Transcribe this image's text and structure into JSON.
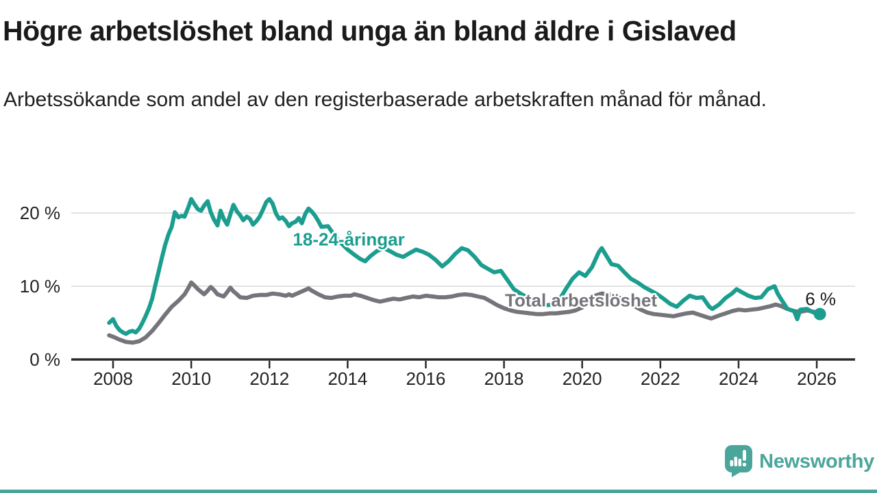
{
  "header": {
    "title": "Högre arbetslöshet bland unga än bland äldre i Gislaved",
    "subtitle": "Arbetssökande som andel av den registerbaserade arbetskraften månad för månad."
  },
  "footer": {
    "brand": "Newsworthy"
  },
  "colors": {
    "youth": "#1b9e8f",
    "total": "#74747a",
    "grid": "#d9d9d9",
    "axis": "#2b2b2b",
    "tick_text": "#222222",
    "annotation_text": "#1a1a1a",
    "brand": "#4aa69b",
    "background": "#ffffff"
  },
  "chart_data": {
    "type": "line",
    "title": "Högre arbetslöshet bland unga än bland äldre i Gislaved",
    "subtitle": "Arbetssökande som andel av den registerbaserade arbetskraften månad för månad.",
    "unit": "%",
    "grid": true,
    "xlim": [
      2007.9,
      2026.3
    ],
    "ylim": [
      0,
      23
    ],
    "x_ticks": [
      2008,
      2010,
      2012,
      2014,
      2016,
      2018,
      2020,
      2022,
      2024,
      2026
    ],
    "x_tick_labels": [
      "2008",
      "2010",
      "2012",
      "2014",
      "2016",
      "2018",
      "2020",
      "2022",
      "2024",
      "2026"
    ],
    "y_ticks": [
      0,
      10,
      20
    ],
    "y_tick_labels": [
      "0 %",
      "10 %",
      "20 %"
    ],
    "series": [
      {
        "name": "Total arbetslöshet",
        "color": "#74747a",
        "label_anchor": [
          2019.97,
          8.1
        ],
        "end_dot": false,
        "points": [
          [
            2007.9,
            3.3
          ],
          [
            2008,
            3.1
          ],
          [
            2008.17,
            2.7
          ],
          [
            2008.33,
            2.4
          ],
          [
            2008.5,
            2.3
          ],
          [
            2008.67,
            2.5
          ],
          [
            2008.83,
            3.0
          ],
          [
            2009,
            3.9
          ],
          [
            2009.17,
            5.0
          ],
          [
            2009.33,
            6.1
          ],
          [
            2009.5,
            7.2
          ],
          [
            2009.67,
            8.0
          ],
          [
            2009.83,
            8.9
          ],
          [
            2009.92,
            9.7
          ],
          [
            2010,
            10.5
          ],
          [
            2010.08,
            10.1
          ],
          [
            2010.17,
            9.6
          ],
          [
            2010.33,
            8.9
          ],
          [
            2010.42,
            9.4
          ],
          [
            2010.5,
            9.9
          ],
          [
            2010.58,
            9.5
          ],
          [
            2010.67,
            8.9
          ],
          [
            2010.83,
            8.6
          ],
          [
            2010.92,
            9.2
          ],
          [
            2011,
            9.8
          ],
          [
            2011.08,
            9.3
          ],
          [
            2011.17,
            8.9
          ],
          [
            2011.25,
            8.5
          ],
          [
            2011.42,
            8.4
          ],
          [
            2011.58,
            8.7
          ],
          [
            2011.75,
            8.8
          ],
          [
            2011.92,
            8.8
          ],
          [
            2012.08,
            9.0
          ],
          [
            2012.25,
            8.9
          ],
          [
            2012.42,
            8.7
          ],
          [
            2012.5,
            8.9
          ],
          [
            2012.58,
            8.7
          ],
          [
            2012.75,
            9.1
          ],
          [
            2012.92,
            9.5
          ],
          [
            2013,
            9.7
          ],
          [
            2013.08,
            9.4
          ],
          [
            2013.25,
            8.9
          ],
          [
            2013.42,
            8.5
          ],
          [
            2013.58,
            8.4
          ],
          [
            2013.75,
            8.6
          ],
          [
            2013.92,
            8.7
          ],
          [
            2014.08,
            8.7
          ],
          [
            2014.17,
            8.9
          ],
          [
            2014.33,
            8.7
          ],
          [
            2014.5,
            8.4
          ],
          [
            2014.67,
            8.1
          ],
          [
            2014.83,
            7.9
          ],
          [
            2015,
            8.1
          ],
          [
            2015.17,
            8.3
          ],
          [
            2015.33,
            8.2
          ],
          [
            2015.5,
            8.4
          ],
          [
            2015.67,
            8.6
          ],
          [
            2015.83,
            8.5
          ],
          [
            2016,
            8.7
          ],
          [
            2016.17,
            8.6
          ],
          [
            2016.33,
            8.5
          ],
          [
            2016.5,
            8.5
          ],
          [
            2016.67,
            8.6
          ],
          [
            2016.83,
            8.8
          ],
          [
            2017,
            8.9
          ],
          [
            2017.17,
            8.8
          ],
          [
            2017.33,
            8.6
          ],
          [
            2017.5,
            8.4
          ],
          [
            2017.67,
            7.9
          ],
          [
            2017.83,
            7.4
          ],
          [
            2018,
            7.0
          ],
          [
            2018.17,
            6.7
          ],
          [
            2018.33,
            6.5
          ],
          [
            2018.5,
            6.4
          ],
          [
            2018.67,
            6.3
          ],
          [
            2018.83,
            6.2
          ],
          [
            2019,
            6.2
          ],
          [
            2019.17,
            6.3
          ],
          [
            2019.33,
            6.3
          ],
          [
            2019.5,
            6.4
          ],
          [
            2019.67,
            6.5
          ],
          [
            2019.83,
            6.7
          ],
          [
            2020,
            7.1
          ],
          [
            2020.17,
            8.0
          ],
          [
            2020.33,
            8.7
          ],
          [
            2020.5,
            9.0
          ],
          [
            2020.67,
            8.9
          ],
          [
            2020.83,
            8.7
          ],
          [
            2021,
            8.3
          ],
          [
            2021.17,
            7.8
          ],
          [
            2021.33,
            7.3
          ],
          [
            2021.5,
            6.8
          ],
          [
            2021.67,
            6.4
          ],
          [
            2021.83,
            6.2
          ],
          [
            2022,
            6.1
          ],
          [
            2022.17,
            6.0
          ],
          [
            2022.33,
            5.9
          ],
          [
            2022.5,
            6.1
          ],
          [
            2022.67,
            6.3
          ],
          [
            2022.83,
            6.4
          ],
          [
            2023,
            6.1
          ],
          [
            2023.17,
            5.8
          ],
          [
            2023.3,
            5.6
          ],
          [
            2023.5,
            6.0
          ],
          [
            2023.67,
            6.3
          ],
          [
            2023.83,
            6.6
          ],
          [
            2024,
            6.8
          ],
          [
            2024.17,
            6.7
          ],
          [
            2024.33,
            6.8
          ],
          [
            2024.5,
            6.9
          ],
          [
            2024.67,
            7.1
          ],
          [
            2024.83,
            7.3
          ],
          [
            2024.95,
            7.5
          ],
          [
            2025.08,
            7.3
          ],
          [
            2025.25,
            6.9
          ],
          [
            2025.42,
            6.6
          ],
          [
            2025.58,
            6.5
          ],
          [
            2025.75,
            6.7
          ],
          [
            2025.92,
            6.5
          ],
          [
            2026.05,
            6.4
          ]
        ]
      },
      {
        "name": "18-24-åringar",
        "color": "#1b9e8f",
        "label_anchor": [
          2014.03,
          16.4
        ],
        "end_dot": true,
        "points": [
          [
            2007.9,
            5.0
          ],
          [
            2008,
            5.5
          ],
          [
            2008.08,
            4.6
          ],
          [
            2008.17,
            4.0
          ],
          [
            2008.25,
            3.7
          ],
          [
            2008.33,
            3.5
          ],
          [
            2008.42,
            3.8
          ],
          [
            2008.5,
            3.9
          ],
          [
            2008.58,
            3.7
          ],
          [
            2008.67,
            4.2
          ],
          [
            2008.75,
            5.0
          ],
          [
            2008.83,
            5.9
          ],
          [
            2008.92,
            7.0
          ],
          [
            2009,
            8.3
          ],
          [
            2009.08,
            10.1
          ],
          [
            2009.17,
            12.1
          ],
          [
            2009.25,
            13.9
          ],
          [
            2009.33,
            15.6
          ],
          [
            2009.42,
            17.1
          ],
          [
            2009.5,
            18.1
          ],
          [
            2009.58,
            20.1
          ],
          [
            2009.67,
            19.4
          ],
          [
            2009.75,
            19.6
          ],
          [
            2009.83,
            19.5
          ],
          [
            2009.92,
            20.7
          ],
          [
            2010,
            21.9
          ],
          [
            2010.08,
            21.2
          ],
          [
            2010.17,
            20.5
          ],
          [
            2010.25,
            20.3
          ],
          [
            2010.33,
            21.0
          ],
          [
            2010.42,
            21.6
          ],
          [
            2010.5,
            20.1
          ],
          [
            2010.58,
            19.1
          ],
          [
            2010.67,
            18.3
          ],
          [
            2010.75,
            20.3
          ],
          [
            2010.83,
            19.2
          ],
          [
            2010.92,
            18.4
          ],
          [
            2011,
            19.8
          ],
          [
            2011.08,
            21.1
          ],
          [
            2011.17,
            20.2
          ],
          [
            2011.25,
            19.7
          ],
          [
            2011.33,
            19.0
          ],
          [
            2011.42,
            19.5
          ],
          [
            2011.5,
            19.2
          ],
          [
            2011.58,
            18.4
          ],
          [
            2011.67,
            18.9
          ],
          [
            2011.75,
            19.5
          ],
          [
            2011.83,
            20.4
          ],
          [
            2011.92,
            21.5
          ],
          [
            2012,
            21.9
          ],
          [
            2012.08,
            21.3
          ],
          [
            2012.17,
            19.9
          ],
          [
            2012.25,
            19.2
          ],
          [
            2012.33,
            19.4
          ],
          [
            2012.42,
            18.9
          ],
          [
            2012.5,
            18.2
          ],
          [
            2012.58,
            18.6
          ],
          [
            2012.67,
            18.8
          ],
          [
            2012.75,
            19.3
          ],
          [
            2012.83,
            18.6
          ],
          [
            2012.92,
            19.9
          ],
          [
            2013,
            20.6
          ],
          [
            2013.08,
            20.2
          ],
          [
            2013.17,
            19.6
          ],
          [
            2013.25,
            18.9
          ],
          [
            2013.33,
            18.1
          ],
          [
            2013.5,
            18.2
          ],
          [
            2013.67,
            16.9
          ],
          [
            2013.83,
            15.9
          ],
          [
            2014,
            15.0
          ],
          [
            2014.17,
            14.3
          ],
          [
            2014.33,
            13.7
          ],
          [
            2014.45,
            13.4
          ],
          [
            2014.58,
            14.1
          ],
          [
            2014.75,
            14.8
          ],
          [
            2014.92,
            15.2
          ],
          [
            2015.08,
            14.8
          ],
          [
            2015.25,
            14.3
          ],
          [
            2015.42,
            14.0
          ],
          [
            2015.58,
            14.5
          ],
          [
            2015.75,
            15.0
          ],
          [
            2015.92,
            14.7
          ],
          [
            2016.08,
            14.3
          ],
          [
            2016.25,
            13.6
          ],
          [
            2016.42,
            12.7
          ],
          [
            2016.58,
            13.4
          ],
          [
            2016.75,
            14.4
          ],
          [
            2016.92,
            15.2
          ],
          [
            2017.08,
            14.9
          ],
          [
            2017.25,
            14.0
          ],
          [
            2017.42,
            12.9
          ],
          [
            2017.58,
            12.4
          ],
          [
            2017.75,
            11.9
          ],
          [
            2017.92,
            12.1
          ],
          [
            2018.08,
            10.9
          ],
          [
            2018.25,
            9.6
          ],
          [
            2018.42,
            9.0
          ],
          [
            2018.58,
            8.5
          ],
          [
            2018.75,
            8.1
          ],
          [
            2018.92,
            7.8
          ],
          [
            2019.08,
            7.4
          ],
          [
            2019.25,
            7.5
          ],
          [
            2019.42,
            8.2
          ],
          [
            2019.58,
            9.6
          ],
          [
            2019.75,
            11.0
          ],
          [
            2019.92,
            11.9
          ],
          [
            2020.08,
            11.4
          ],
          [
            2020.25,
            12.6
          ],
          [
            2020.42,
            14.6
          ],
          [
            2020.5,
            15.2
          ],
          [
            2020.58,
            14.5
          ],
          [
            2020.75,
            13.0
          ],
          [
            2020.92,
            12.8
          ],
          [
            2021.08,
            11.9
          ],
          [
            2021.25,
            11.0
          ],
          [
            2021.42,
            10.5
          ],
          [
            2021.58,
            9.9
          ],
          [
            2021.75,
            9.4
          ],
          [
            2021.92,
            8.9
          ],
          [
            2022.08,
            8.3
          ],
          [
            2022.25,
            7.6
          ],
          [
            2022.42,
            7.2
          ],
          [
            2022.58,
            8.0
          ],
          [
            2022.75,
            8.7
          ],
          [
            2022.92,
            8.4
          ],
          [
            2023.08,
            8.5
          ],
          [
            2023.25,
            7.2
          ],
          [
            2023.33,
            6.9
          ],
          [
            2023.5,
            7.5
          ],
          [
            2023.67,
            8.4
          ],
          [
            2023.83,
            9.0
          ],
          [
            2023.95,
            9.6
          ],
          [
            2024.08,
            9.2
          ],
          [
            2024.25,
            8.7
          ],
          [
            2024.42,
            8.4
          ],
          [
            2024.58,
            8.5
          ],
          [
            2024.75,
            9.6
          ],
          [
            2024.92,
            10.0
          ],
          [
            2025,
            9.0
          ],
          [
            2025.08,
            8.3
          ],
          [
            2025.25,
            6.9
          ],
          [
            2025.42,
            6.6
          ],
          [
            2025.5,
            5.5
          ],
          [
            2025.58,
            6.8
          ],
          [
            2025.75,
            6.9
          ],
          [
            2025.92,
            6.4
          ],
          [
            2026.08,
            6.2
          ]
        ]
      }
    ],
    "end_annotation": {
      "text": "6 %",
      "series": "18-24-åringar"
    },
    "legend_position": "inline-labels"
  }
}
